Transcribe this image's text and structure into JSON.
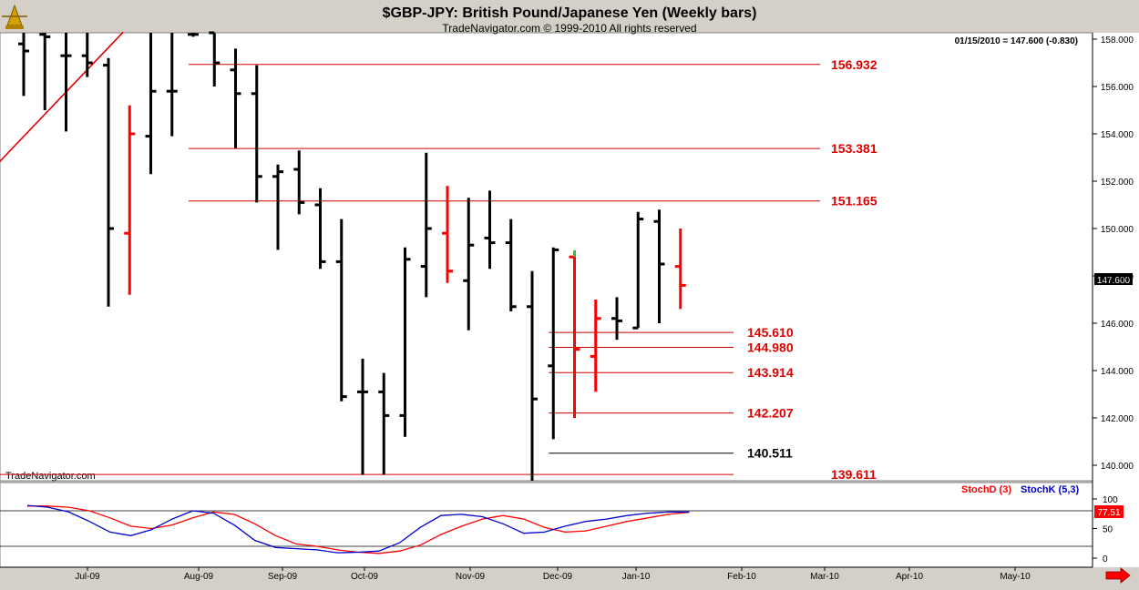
{
  "header": {
    "title": "$GBP-JPY:  British Pound/Japanese Yen  (Weekly bars)",
    "subtitle": "TradeNavigator.com © 1999-2010 All rights reserved",
    "quote": "01/15/2010 = 147.600 (-0.830)",
    "watermark": "TradeNavigator.com",
    "logo": "trade-navigator-compass-icon"
  },
  "colors": {
    "up_bar": "#000000",
    "down_bar": "#ff0000",
    "level_line": "#cc0000",
    "level_label": "#dd0000",
    "stoch_d": "#ff0000",
    "stoch_k": "#0000cc",
    "panel_bg": "#ffffff",
    "frame_bg": "#d4d0c8"
  },
  "chart_data": [
    {
      "type": "ohlc",
      "title": "$GBP-JPY:  British Pound/Japanese Yen  (Weekly bars)",
      "ylim": [
        139.5,
        158.3
      ],
      "y_ticks": [
        140.0,
        142.0,
        144.0,
        146.0,
        148.0,
        150.0,
        152.0,
        154.0,
        156.0,
        158.0
      ],
      "x_ticks": [
        "Jul-09",
        "Aug-09",
        "Sep-09",
        "Oct-09",
        "Nov-09",
        "Dec-09",
        "Jan-10",
        "Feb-10",
        "Mar-10",
        "Apr-10",
        "May-10"
      ],
      "last_price": "147.600",
      "bars": [
        {
          "week": 0,
          "open": 157.8,
          "high": 158.3,
          "low": 155.6,
          "close": 157.5,
          "color": "black"
        },
        {
          "week": 1,
          "open": 158.2,
          "high": 158.3,
          "low": 155.0,
          "close": 158.1,
          "color": "black"
        },
        {
          "week": 2,
          "open": 157.3,
          "high": 158.3,
          "low": 154.1,
          "close": 157.3,
          "color": "black"
        },
        {
          "week": 3,
          "open": 157.3,
          "high": 158.3,
          "low": 156.4,
          "close": 157.0,
          "color": "black"
        },
        {
          "week": 4,
          "open": 156.9,
          "high": 157.2,
          "low": 146.7,
          "close": 150.0,
          "color": "black"
        },
        {
          "week": 5,
          "open": 149.8,
          "high": 155.2,
          "low": 147.2,
          "close": 154.0,
          "color": "red"
        },
        {
          "week": 6,
          "open": 153.9,
          "high": 158.3,
          "low": 152.3,
          "close": 155.8,
          "color": "black"
        },
        {
          "week": 7,
          "open": 155.8,
          "high": 158.3,
          "low": 153.9,
          "close": 155.8,
          "color": "black"
        },
        {
          "week": 8,
          "open": 158.2,
          "high": 158.3,
          "low": 158.1,
          "close": 158.2,
          "color": "black"
        },
        {
          "week": 9,
          "open": 158.3,
          "high": 158.3,
          "low": 156.0,
          "close": 157.0,
          "color": "black"
        },
        {
          "week": 10,
          "open": 156.7,
          "high": 157.6,
          "low": 153.4,
          "close": 155.7,
          "color": "black"
        },
        {
          "week": 11,
          "open": 155.7,
          "high": 156.9,
          "low": 151.1,
          "close": 152.2,
          "color": "black"
        },
        {
          "week": 12,
          "open": 152.2,
          "high": 152.7,
          "low": 149.1,
          "close": 152.4,
          "color": "black"
        },
        {
          "week": 13,
          "open": 152.5,
          "high": 153.3,
          "low": 150.6,
          "close": 151.1,
          "color": "black"
        },
        {
          "week": 14,
          "open": 151.0,
          "high": 151.7,
          "low": 148.3,
          "close": 148.6,
          "color": "black"
        },
        {
          "week": 15,
          "open": 148.6,
          "high": 150.4,
          "low": 142.7,
          "close": 142.9,
          "color": "black"
        },
        {
          "week": 16,
          "open": 143.1,
          "high": 144.5,
          "low": 139.6,
          "close": 143.1,
          "color": "black"
        },
        {
          "week": 17,
          "open": 143.1,
          "high": 143.9,
          "low": 139.6,
          "close": 142.1,
          "color": "black"
        },
        {
          "week": 18,
          "open": 142.1,
          "high": 149.2,
          "low": 141.2,
          "close": 148.7,
          "color": "black"
        },
        {
          "week": 19,
          "open": 148.4,
          "high": 153.2,
          "low": 147.1,
          "close": 150.0,
          "color": "black"
        },
        {
          "week": 20,
          "open": 149.8,
          "high": 151.8,
          "low": 147.7,
          "close": 148.2,
          "color": "red"
        },
        {
          "week": 21,
          "open": 147.8,
          "high": 151.3,
          "low": 145.7,
          "close": 149.3,
          "color": "black"
        },
        {
          "week": 22,
          "open": 149.6,
          "high": 151.6,
          "low": 148.3,
          "close": 149.4,
          "color": "black"
        },
        {
          "week": 23,
          "open": 149.4,
          "high": 150.4,
          "low": 146.5,
          "close": 146.7,
          "color": "black"
        },
        {
          "week": 24,
          "open": 146.7,
          "high": 148.2,
          "low": 139.2,
          "close": 142.8,
          "color": "black"
        },
        {
          "week": 25,
          "open": 144.2,
          "high": 149.2,
          "low": 141.1,
          "close": 149.1,
          "color": "black"
        },
        {
          "week": 26,
          "open": 148.8,
          "high": 149.0,
          "low": 142.0,
          "close": 144.9,
          "color": "red"
        },
        {
          "week": 27,
          "open": 144.6,
          "high": 147.0,
          "low": 143.1,
          "close": 146.2,
          "color": "red"
        },
        {
          "week": 28,
          "open": 146.2,
          "high": 147.1,
          "low": 145.3,
          "close": 146.1,
          "color": "black"
        },
        {
          "week": 29,
          "open": 145.8,
          "high": 150.7,
          "low": 145.8,
          "close": 150.4,
          "color": "black"
        },
        {
          "week": 30,
          "open": 150.3,
          "high": 150.8,
          "low": 146.0,
          "close": 148.5,
          "color": "black"
        },
        {
          "week": 31,
          "open": 148.4,
          "high": 150.0,
          "low": 146.6,
          "close": 147.6,
          "color": "red"
        }
      ],
      "levels": [
        {
          "label": "156.932",
          "value": 156.932,
          "color": "red",
          "from_week": 8
        },
        {
          "label": "153.381",
          "value": 153.381,
          "color": "red",
          "from_week": 8
        },
        {
          "label": "151.165",
          "value": 151.165,
          "color": "red",
          "from_week": 8
        },
        {
          "label": "145.610",
          "value": 145.61,
          "color": "red",
          "from_week": 25
        },
        {
          "label": "144.980",
          "value": 144.98,
          "color": "red",
          "from_week": 25
        },
        {
          "label": "143.914",
          "value": 143.914,
          "color": "red",
          "from_week": 25
        },
        {
          "label": "142.207",
          "value": 142.207,
          "color": "red",
          "from_week": 25
        },
        {
          "label": "140.511",
          "value": 140.511,
          "color": "black",
          "from_week": 25
        },
        {
          "label": "139.611",
          "value": 139.611,
          "color": "red",
          "from_week": 0
        }
      ],
      "trendline": {
        "color": "red",
        "from": {
          "week": -5,
          "value": 149.2
        },
        "to": {
          "week": 4.7,
          "value": 158.3
        }
      }
    },
    {
      "type": "line",
      "ylim": [
        0,
        100
      ],
      "y_ticks": [
        0,
        50,
        100
      ],
      "reference_lines": [
        20,
        80
      ],
      "last_value": "77.51",
      "series": [
        {
          "name": "StochD (3)",
          "color": "red",
          "values": [
            88,
            88,
            86,
            80,
            68,
            54,
            50,
            56,
            68,
            78,
            74,
            58,
            38,
            24,
            20,
            14,
            10,
            8,
            12,
            22,
            40,
            54,
            66,
            72,
            66,
            52,
            44,
            46,
            54,
            62,
            68,
            74,
            77.5
          ]
        },
        {
          "name": "StochK (5,3)",
          "color": "blue",
          "values": [
            89,
            86,
            78,
            62,
            44,
            38,
            48,
            66,
            80,
            76,
            56,
            30,
            18,
            16,
            14,
            9,
            10,
            12,
            26,
            52,
            72,
            74,
            70,
            58,
            42,
            44,
            54,
            62,
            66,
            72,
            76,
            78,
            78
          ]
        }
      ]
    }
  ]
}
